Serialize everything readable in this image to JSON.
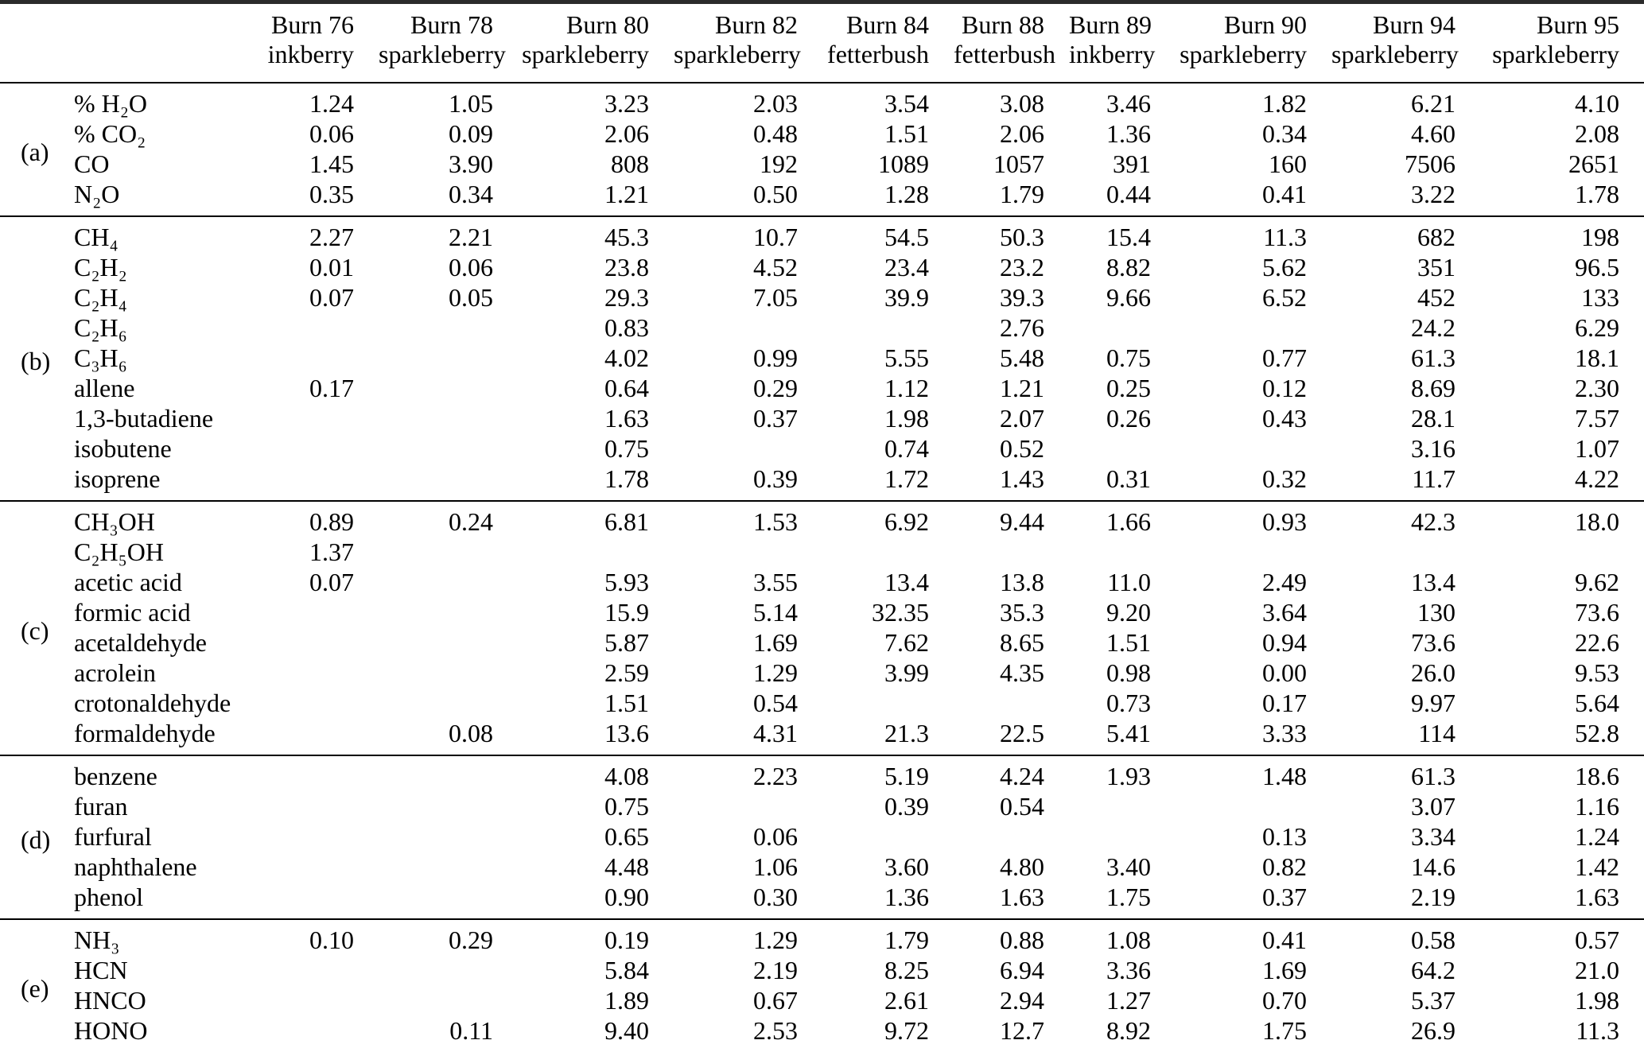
{
  "table": {
    "columns": [
      {
        "burn": "Burn 76",
        "fuel": "inkberry"
      },
      {
        "burn": "Burn 78",
        "fuel": "sparkleberry"
      },
      {
        "burn": "Burn 80",
        "fuel": "sparkleberry"
      },
      {
        "burn": "Burn 82",
        "fuel": "sparkleberry"
      },
      {
        "burn": "Burn 84",
        "fuel": "fetterbush"
      },
      {
        "burn": "Burn 88",
        "fuel": "fetterbush"
      },
      {
        "burn": "Burn 89",
        "fuel": "inkberry"
      },
      {
        "burn": "Burn 90",
        "fuel": "sparkleberry"
      },
      {
        "burn": "Burn 94",
        "fuel": "sparkleberry"
      },
      {
        "burn": "Burn 95",
        "fuel": "sparkleberry"
      }
    ],
    "sections": [
      {
        "label": "(a)",
        "rows": [
          {
            "species": "% H₂O",
            "values": [
              "1.24",
              "1.05",
              "3.23",
              "2.03",
              "3.54",
              "3.08",
              "3.46",
              "1.82",
              "6.21",
              "4.10"
            ]
          },
          {
            "species": "% CO₂",
            "values": [
              "0.06",
              "0.09",
              "2.06",
              "0.48",
              "1.51",
              "2.06",
              "1.36",
              "0.34",
              "4.60",
              "2.08"
            ]
          },
          {
            "species": "CO",
            "values": [
              "1.45",
              "3.90",
              "808",
              "192",
              "1089",
              "1057",
              "391",
              "160",
              "7506",
              "2651"
            ]
          },
          {
            "species": "N₂O",
            "values": [
              "0.35",
              "0.34",
              "1.21",
              "0.50",
              "1.28",
              "1.79",
              "0.44",
              "0.41",
              "3.22",
              "1.78"
            ]
          }
        ]
      },
      {
        "label": "(b)",
        "rows": [
          {
            "species": "CH₄",
            "values": [
              "2.27",
              "2.21",
              "45.3",
              "10.7",
              "54.5",
              "50.3",
              "15.4",
              "11.3",
              "682",
              "198"
            ]
          },
          {
            "species": "C₂H₂",
            "values": [
              "0.01",
              "0.06",
              "23.8",
              "4.52",
              "23.4",
              "23.2",
              "8.82",
              "5.62",
              "351",
              "96.5"
            ]
          },
          {
            "species": "C₂H₄",
            "values": [
              "0.07",
              "0.05",
              "29.3",
              "7.05",
              "39.9",
              "39.3",
              "9.66",
              "6.52",
              "452",
              "133"
            ]
          },
          {
            "species": "C₂H₆",
            "values": [
              "",
              "",
              "0.83",
              "",
              "",
              "2.76",
              "",
              "",
              "24.2",
              "6.29"
            ]
          },
          {
            "species": "C₃H₆",
            "values": [
              "",
              "",
              "4.02",
              "0.99",
              "5.55",
              "5.48",
              "0.75",
              "0.77",
              "61.3",
              "18.1"
            ]
          },
          {
            "species": "allene",
            "values": [
              "0.17",
              "",
              "0.64",
              "0.29",
              "1.12",
              "1.21",
              "0.25",
              "0.12",
              "8.69",
              "2.30"
            ]
          },
          {
            "species": "1,3-butadiene",
            "values": [
              "",
              "",
              "1.63",
              "0.37",
              "1.98",
              "2.07",
              "0.26",
              "0.43",
              "28.1",
              "7.57"
            ]
          },
          {
            "species": "isobutene",
            "values": [
              "",
              "",
              "0.75",
              "",
              "0.74",
              "0.52",
              "",
              "",
              "3.16",
              "1.07"
            ]
          },
          {
            "species": "isoprene",
            "values": [
              "",
              "",
              "1.78",
              "0.39",
              "1.72",
              "1.43",
              "0.31",
              "0.32",
              "11.7",
              "4.22"
            ]
          }
        ]
      },
      {
        "label": "(c)",
        "rows": [
          {
            "species": "CH₃OH",
            "values": [
              "0.89",
              "0.24",
              "6.81",
              "1.53",
              "6.92",
              "9.44",
              "1.66",
              "0.93",
              "42.3",
              "18.0"
            ]
          },
          {
            "species": "C₂H₅OH",
            "values": [
              "1.37",
              "",
              "",
              "",
              "",
              "",
              "",
              "",
              "",
              ""
            ]
          },
          {
            "species": "acetic acid",
            "values": [
              "0.07",
              "",
              "5.93",
              "3.55",
              "13.4",
              "13.8",
              "11.0",
              "2.49",
              "13.4",
              "9.62"
            ]
          },
          {
            "species": "formic acid",
            "values": [
              "",
              "",
              "15.9",
              "5.14",
              "32.35",
              "35.3",
              "9.20",
              "3.64",
              "130",
              "73.6"
            ]
          },
          {
            "species": "acetaldehyde",
            "values": [
              "",
              "",
              "5.87",
              "1.69",
              "7.62",
              "8.65",
              "1.51",
              "0.94",
              "73.6",
              "22.6"
            ]
          },
          {
            "species": "acrolein",
            "values": [
              "",
              "",
              "2.59",
              "1.29",
              "3.99",
              "4.35",
              "0.98",
              "0.00",
              "26.0",
              "9.53"
            ]
          },
          {
            "species": "crotonaldehyde",
            "values": [
              "",
              "",
              "1.51",
              "0.54",
              "",
              "",
              "0.73",
              "0.17",
              "9.97",
              "5.64"
            ]
          },
          {
            "species": "formaldehyde",
            "values": [
              "",
              "0.08",
              "13.6",
              "4.31",
              "21.3",
              "22.5",
              "5.41",
              "3.33",
              "114",
              "52.8"
            ]
          }
        ]
      },
      {
        "label": "(d)",
        "rows": [
          {
            "species": "benzene",
            "values": [
              "",
              "",
              "4.08",
              "2.23",
              "5.19",
              "4.24",
              "1.93",
              "1.48",
              "61.3",
              "18.6"
            ]
          },
          {
            "species": "furan",
            "values": [
              "",
              "",
              "0.75",
              "",
              "0.39",
              "0.54",
              "",
              "",
              "3.07",
              "1.16"
            ]
          },
          {
            "species": "furfural",
            "values": [
              "",
              "",
              "0.65",
              "0.06",
              "",
              "",
              "",
              "0.13",
              "3.34",
              "1.24"
            ]
          },
          {
            "species": "naphthalene",
            "values": [
              "",
              "",
              "4.48",
              "1.06",
              "3.60",
              "4.80",
              "3.40",
              "0.82",
              "14.6",
              "1.42"
            ]
          },
          {
            "species": "phenol",
            "values": [
              "",
              "",
              "0.90",
              "0.30",
              "1.36",
              "1.63",
              "1.75",
              "0.37",
              "2.19",
              "1.63"
            ]
          }
        ]
      },
      {
        "label": "(e)",
        "rows": [
          {
            "species": "NH₃",
            "values": [
              "0.10",
              "0.29",
              "0.19",
              "1.29",
              "1.79",
              "0.88",
              "1.08",
              "0.41",
              "0.58",
              "0.57"
            ]
          },
          {
            "species": "HCN",
            "values": [
              "",
              "",
              "5.84",
              "2.19",
              "8.25",
              "6.94",
              "3.36",
              "1.69",
              "64.2",
              "21.0"
            ]
          },
          {
            "species": "HNCO",
            "values": [
              "",
              "",
              "1.89",
              "0.67",
              "2.61",
              "2.94",
              "1.27",
              "0.70",
              "5.37",
              "1.98"
            ]
          },
          {
            "species": "HONO",
            "values": [
              "",
              "0.11",
              "9.40",
              "2.53",
              "9.72",
              "12.7",
              "8.92",
              "1.75",
              "26.9",
              "11.3"
            ]
          }
        ]
      }
    ]
  }
}
